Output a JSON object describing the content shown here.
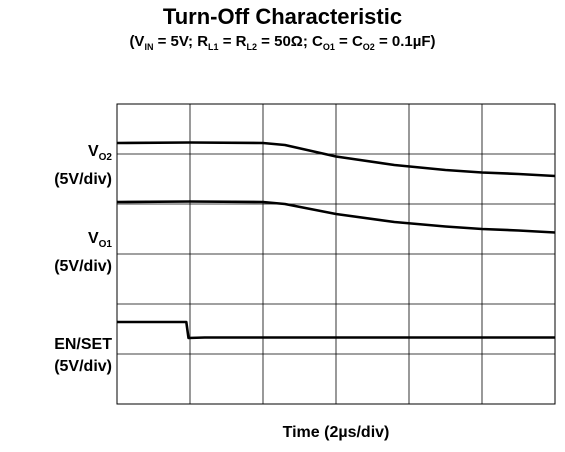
{
  "chart_data": {
    "type": "line",
    "title": "Turn-Off Characteristic",
    "subtitle_parts": {
      "open": "(V",
      "vin_sub": "IN",
      "vin_val": " = 5V; R",
      "rl1_sub": "L1",
      "eq1": " = R",
      "rl2_sub": "L2",
      "rl_val": " = 50Ω; C",
      "co1_sub": "O1",
      "eq2": " = C",
      "co2_sub": "O2",
      "close": " = 0.1µF)"
    },
    "xlabel": "Time (2µs/div)",
    "grid": {
      "x_divisions": 6,
      "y_divisions": 6,
      "shown": true
    },
    "channels": [
      {
        "label_main": "V",
        "label_sub": "O2",
        "scale": "(5V/div)"
      },
      {
        "label_main": "V",
        "label_sub": "O1",
        "scale": "(5V/div)"
      },
      {
        "label_main": "EN/SET",
        "label_sub": "",
        "scale": "(5V/div)"
      }
    ],
    "series": [
      {
        "x": [
          0,
          1,
          2,
          2.3,
          3,
          3.8,
          4.5,
          5,
          5.5,
          6
        ],
        "y": [
          5.22,
          5.23,
          5.22,
          5.18,
          4.95,
          4.78,
          4.68,
          4.63,
          4.6,
          4.56
        ]
      },
      {
        "x": [
          0,
          1,
          2,
          2.3,
          3,
          3.8,
          4.5,
          5,
          5.5,
          6
        ],
        "y": [
          4.04,
          4.05,
          4.04,
          4.0,
          3.8,
          3.64,
          3.55,
          3.5,
          3.47,
          3.43
        ]
      },
      {
        "x": [
          0,
          0.95,
          0.98,
          1.2,
          2,
          3,
          4,
          5,
          6
        ],
        "y": [
          1.64,
          1.64,
          1.32,
          1.33,
          1.33,
          1.33,
          1.33,
          1.33,
          1.33
        ]
      }
    ],
    "xlim": [
      0,
      6
    ],
    "ylim": [
      0,
      6
    ]
  }
}
